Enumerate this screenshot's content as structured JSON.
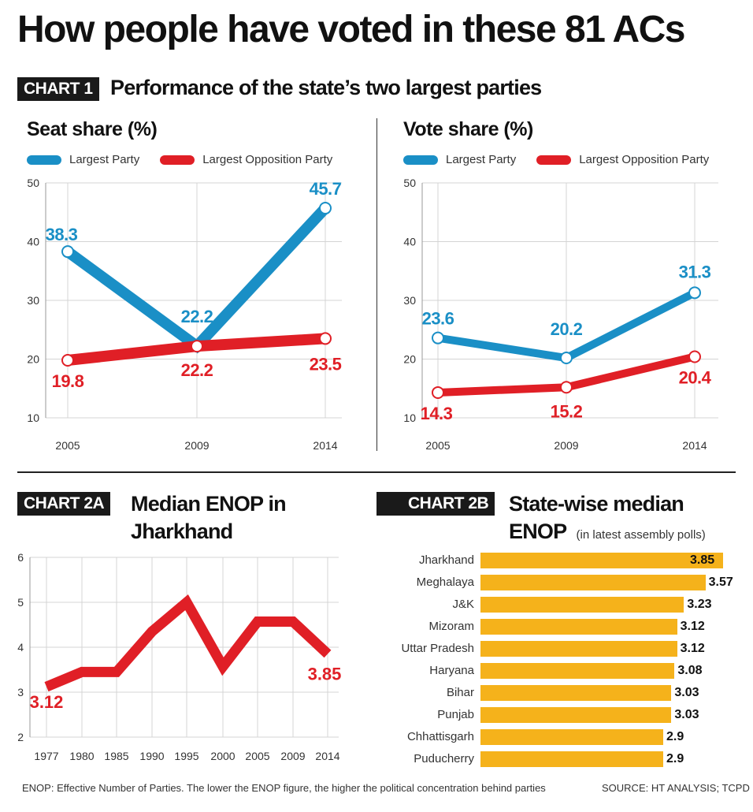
{
  "title": "How people have voted in these 81 ACs",
  "chart1": {
    "tag": "CHART 1",
    "heading": "Performance of the state’s two largest parties"
  },
  "legend": {
    "largest": "Largest Party",
    "opposition": "Largest Opposition Party"
  },
  "colors": {
    "largest": "#1a8fc6",
    "opposition": "#e01f26",
    "bar": "#f5b21b",
    "tag_bg": "#1a1a1a"
  },
  "chart2a": {
    "tag": "CHART 2A",
    "heading_line1": "Median ENOP in",
    "heading_line2": "Jharkhand"
  },
  "chart2b": {
    "tag": "CHART 2B",
    "heading_line1": "State-wise median",
    "heading_line2": "ENOP",
    "heading_note": "(in latest assembly polls)"
  },
  "footer": {
    "note": "ENOP: Effective Number of Parties. The lower the ENOP figure, the higher the political concentration behind parties",
    "source": "SOURCE: HT ANALYSIS; TCPD"
  },
  "chart_data": [
    {
      "type": "line",
      "title": "Seat share (%)",
      "x": [
        "2005",
        "2009",
        "2014"
      ],
      "ylim": [
        10,
        50
      ],
      "yticks": [
        10,
        20,
        30,
        40,
        50
      ],
      "grid": true,
      "legend_position": "top",
      "series": [
        {
          "name": "Largest Party",
          "values": [
            38.3,
            22.2,
            45.7
          ],
          "labels": [
            "38.3",
            "22.2",
            "45.7"
          ]
        },
        {
          "name": "Largest Opposition Party",
          "values": [
            19.8,
            22.2,
            23.5
          ],
          "labels": [
            "19.8",
            "22.2",
            "23.5"
          ]
        }
      ]
    },
    {
      "type": "line",
      "title": "Vote share (%)",
      "x": [
        "2005",
        "2009",
        "2014"
      ],
      "ylim": [
        10,
        50
      ],
      "yticks": [
        10,
        20,
        30,
        40,
        50
      ],
      "grid": true,
      "legend_position": "top",
      "series": [
        {
          "name": "Largest Party",
          "values": [
            23.6,
            20.2,
            31.3
          ],
          "labels": [
            "23.6",
            "20.2",
            "31.3"
          ]
        },
        {
          "name": "Largest Opposition Party",
          "values": [
            14.3,
            15.2,
            20.4
          ],
          "labels": [
            "14.3",
            "15.2",
            "20.4"
          ]
        }
      ]
    },
    {
      "type": "line",
      "title": "Median ENOP in Jharkhand",
      "x": [
        "1977",
        "1980",
        "1985",
        "1990",
        "1995",
        "2000",
        "2005",
        "2009",
        "2014"
      ],
      "ylim": [
        2,
        6
      ],
      "yticks": [
        2,
        3,
        4,
        5,
        6
      ],
      "grid": true,
      "series": [
        {
          "values": [
            3.12,
            3.45,
            3.45,
            4.35,
            5.0,
            3.57,
            4.57,
            4.57,
            3.85
          ]
        }
      ],
      "point_labels": [
        {
          "index": 0,
          "text": "3.12"
        },
        {
          "index": 8,
          "text": "3.85"
        }
      ]
    },
    {
      "type": "bar",
      "orientation": "horizontal",
      "title": "State-wise median ENOP",
      "subtitle": "(in latest assembly polls)",
      "categories": [
        "Jharkhand",
        "Meghalaya",
        "J&K",
        "Mizoram",
        "Uttar Pradesh",
        "Haryana",
        "Bihar",
        "Punjab",
        "Chhattisgarh",
        "Puducherry"
      ],
      "values": [
        3.85,
        3.57,
        3.23,
        3.12,
        3.12,
        3.08,
        3.03,
        3.03,
        2.9,
        2.9
      ],
      "labels": [
        "3.85",
        "3.57",
        "3.23",
        "3.12",
        "3.12",
        "3.08",
        "3.03",
        "3.03",
        "2.9",
        "2.9"
      ]
    }
  ]
}
